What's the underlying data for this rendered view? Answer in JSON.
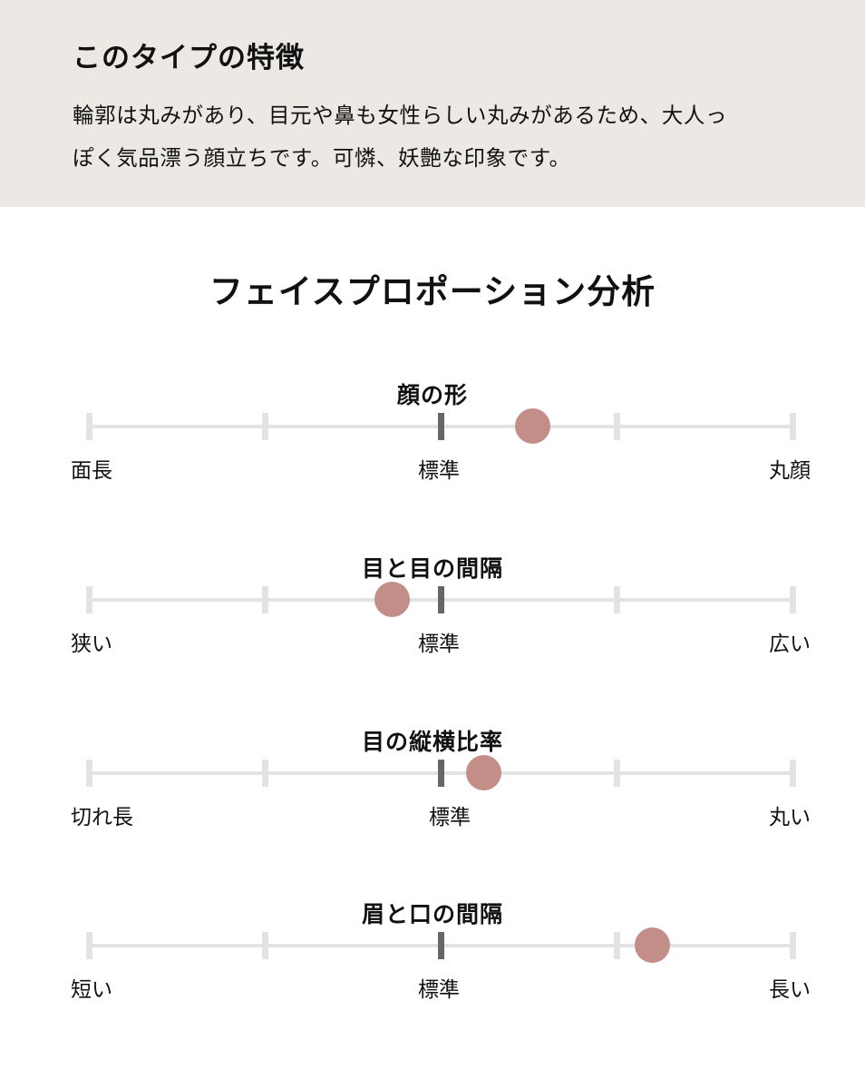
{
  "feature": {
    "heading": "このタイプの特徴",
    "description_lines": [
      "輪郭は丸みがあり、目元や鼻も女性らしい丸みがあるため、大人っ",
      "ぽく気品漂う顔立ちです。可憐、妖艶な印象です。"
    ]
  },
  "analysis": {
    "title": "フェイスプロポーション分析",
    "scales": [
      {
        "title": "顔の形",
        "left_label": "面長",
        "center_label": "標準",
        "right_label": "丸顔",
        "value": 0.63
      },
      {
        "title": "目と目の間隔",
        "left_label": "狭い",
        "center_label": "標準",
        "right_label": "広い",
        "value": 0.43
      },
      {
        "title": "目の縦横比率",
        "left_label": "切れ長",
        "center_label": "標準",
        "right_label": "丸い",
        "value": 0.56
      },
      {
        "title": "眉と口の間隔",
        "left_label": "短い",
        "center_label": "標準",
        "right_label": "長い",
        "value": 0.8
      }
    ]
  },
  "colors": {
    "top_panel_bg": "#ece9e5",
    "marker": "#c38e87",
    "track": "#e3e3e3",
    "center_tick": "#666666"
  }
}
